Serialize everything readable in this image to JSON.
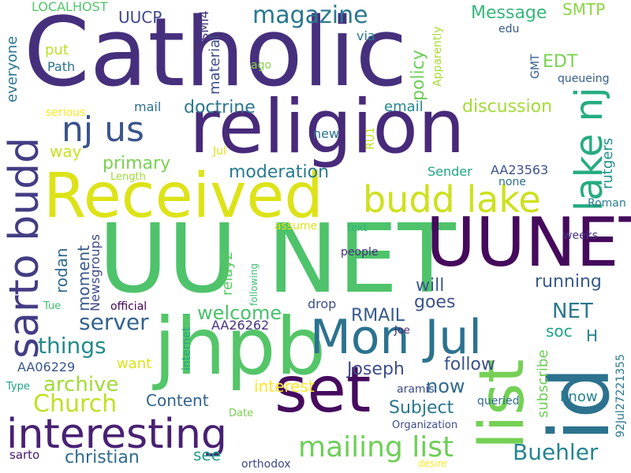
{
  "words": [
    {
      "text": "Catholic",
      "color": "#46307d"
    },
    {
      "text": "religion",
      "color": "#472a7a"
    },
    {
      "text": "UU NET",
      "color": "#4ec36b"
    },
    {
      "text": "UUNET",
      "color": "#450a5c"
    },
    {
      "text": "Received",
      "color": "#dde318"
    },
    {
      "text": "jhpb",
      "color": "#54c568"
    },
    {
      "text": "set",
      "color": "#460b5e"
    },
    {
      "text": "list",
      "color": "#75d054"
    },
    {
      "text": "id",
      "color": "#2c728e"
    },
    {
      "text": "Mon Jul",
      "color": "#2c728e"
    },
    {
      "text": "interesting",
      "color": "#482173"
    },
    {
      "text": "budd lake",
      "color": "#cde11d"
    },
    {
      "text": "sarto budd",
      "color": "#433d84"
    },
    {
      "text": "lake nj",
      "color": "#25ab82"
    },
    {
      "text": "nj us",
      "color": "#3a548c"
    },
    {
      "text": "mailing list",
      "color": "#6ece58"
    },
    {
      "text": "magazine",
      "color": "#2a788e"
    },
    {
      "text": "Buehler",
      "color": "#25858e"
    },
    {
      "text": "Church",
      "color": "#c2df23"
    },
    {
      "text": "things",
      "color": "#23898e"
    },
    {
      "text": "archive",
      "color": "#a2da37"
    },
    {
      "text": "server",
      "color": "#33638d"
    },
    {
      "text": "Subject",
      "color": "#2a788e"
    },
    {
      "text": "Joseph",
      "color": "#3e4c8a"
    },
    {
      "text": "now",
      "color": "#306a8e"
    },
    {
      "text": "follow",
      "color": "#3b528b"
    },
    {
      "text": "doctrine",
      "color": "#2a788e"
    },
    {
      "text": "moderation",
      "color": "#287c8e"
    },
    {
      "text": "NET",
      "color": "#2a788e"
    },
    {
      "text": "christian",
      "color": "#2f6b8e"
    },
    {
      "text": "running",
      "color": "#375b8d"
    },
    {
      "text": "will",
      "color": "#39568c"
    },
    {
      "text": "goes",
      "color": "#3b528b"
    },
    {
      "text": "welcome",
      "color": "#4ac16d"
    },
    {
      "text": "RMAIL",
      "color": "#375b8d"
    },
    {
      "text": "Content",
      "color": "#33638d"
    },
    {
      "text": "interest",
      "color": "#fde725"
    },
    {
      "text": "primary",
      "color": "#7ad151"
    },
    {
      "text": "email",
      "color": "#24878e"
    },
    {
      "text": "discussion",
      "color": "#a5db36"
    },
    {
      "text": "policy",
      "color": "#6ece58"
    },
    {
      "text": "EDT",
      "color": "#7ad151"
    },
    {
      "text": "Message",
      "color": "#35b779"
    },
    {
      "text": "SMTP",
      "color": "#8bd646"
    },
    {
      "text": "rodan",
      "color": "#31688e"
    },
    {
      "text": "moment",
      "color": "#38598c"
    },
    {
      "text": "want",
      "color": "#dde318"
    },
    {
      "text": "see",
      "color": "#1f9e89"
    },
    {
      "text": "soc",
      "color": "#1fa187"
    },
    {
      "text": "H",
      "color": "#26828e"
    },
    {
      "text": "know",
      "color": "#26828e"
    },
    {
      "text": "UUCP",
      "color": "#404688"
    },
    {
      "text": "material",
      "color": "#3d4d8a"
    },
    {
      "text": "put",
      "color": "#bddf26"
    },
    {
      "text": "Path",
      "color": "#2c728e"
    },
    {
      "text": "everyone",
      "color": "#2b748e"
    },
    {
      "text": "way",
      "color": "#c8e020"
    },
    {
      "text": "relay2",
      "color": "#5ac864"
    },
    {
      "text": "rutgers",
      "color": "#21918c"
    },
    {
      "text": "subscribe",
      "color": "#6ece58"
    },
    {
      "text": "92Jul27221355",
      "color": "#2a788e"
    },
    {
      "text": "Newsgroups",
      "color": "#3e4989"
    },
    {
      "text": "AA26262",
      "color": "#46327e"
    },
    {
      "text": "AA23563",
      "color": "#3b528b"
    },
    {
      "text": "AA06229",
      "color": "#39568c"
    },
    {
      "text": "LOCALHOST",
      "color": "#52c569"
    },
    {
      "text": "SMI4",
      "color": "#453781"
    },
    {
      "text": "mail",
      "color": "#2d708e"
    },
    {
      "text": "via",
      "color": "#2a788e"
    },
    {
      "text": "edu",
      "color": "#38598c"
    },
    {
      "text": "Apparently",
      "color": "#a8db34"
    },
    {
      "text": "ago",
      "color": "#89d548"
    },
    {
      "text": "GMT",
      "color": "#375b8d"
    },
    {
      "text": "queueing",
      "color": "#355f8d"
    },
    {
      "text": "serious",
      "color": "#fde725"
    },
    {
      "text": "new",
      "color": "#2c728e"
    },
    {
      "text": "RU1",
      "color": "#c2df23"
    },
    {
      "text": "Jul",
      "color": "#dde318"
    },
    {
      "text": "Length",
      "color": "#a0da39"
    },
    {
      "text": "Sender",
      "color": "#20a386"
    },
    {
      "text": "none",
      "color": "#2d708e"
    },
    {
      "text": "assume",
      "color": "#dde318"
    },
    {
      "text": "text",
      "color": "#2fb47c"
    },
    {
      "text": "Roman",
      "color": "#287c8e"
    },
    {
      "text": "weeks",
      "color": "#46327e"
    },
    {
      "text": "people",
      "color": "#472c7a"
    },
    {
      "text": "following",
      "color": "#3fbc73"
    },
    {
      "text": "official",
      "color": "#440154"
    },
    {
      "text": "drop",
      "color": "#3d4d8a"
    },
    {
      "text": "Tue",
      "color": "#3fbc73"
    },
    {
      "text": "internet",
      "color": "#22a884"
    },
    {
      "text": "Joe",
      "color": "#482475"
    },
    {
      "text": "aramis",
      "color": "#3e4c8a"
    },
    {
      "text": "queried",
      "color": "#306a8e"
    },
    {
      "text": "Organization",
      "color": "#3e4c8a"
    },
    {
      "text": "Type",
      "color": "#20a386"
    },
    {
      "text": "Date",
      "color": "#7ad151"
    },
    {
      "text": "sarto",
      "color": "#48186a"
    },
    {
      "text": "orthodox",
      "color": "#3e4a89"
    },
    {
      "text": "desire",
      "color": "#fde725"
    }
  ]
}
